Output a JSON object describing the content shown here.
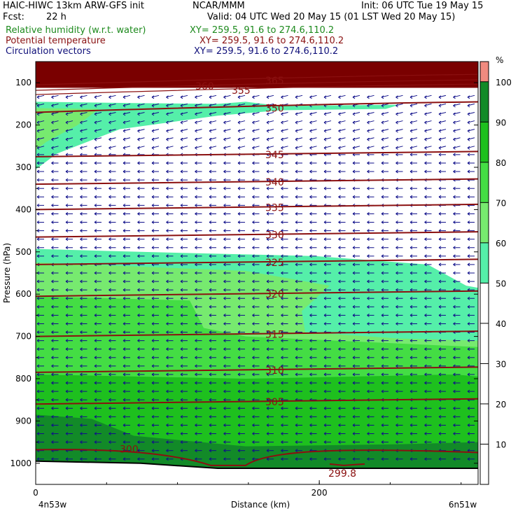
{
  "header": {
    "model": "HAIC-HIWC 13km ARW-GFS init",
    "institution": "NCAR/MMM",
    "init": "Init: 06 UTC Tue 19 May 15",
    "fcst_label": "Fcst:",
    "fcst_value": "22 h",
    "valid": "Valid: 04 UTC Wed 20 May 15 (01 LST Wed 20 May 15)",
    "fields": [
      {
        "name": "Relative humidity (w.r.t. water)",
        "xy": "XY= 259.5, 91.6 to 274.6,110.2",
        "color": "#1d8a1d"
      },
      {
        "name": "Potential temperature",
        "xy": "XY= 259.5, 91.6 to 274.6,110.2",
        "color": "#8a1212"
      },
      {
        "name": "Circulation vectors",
        "xy": "XY= 259.5, 91.6 to 274.6,110.2",
        "color": "#10107a"
      }
    ]
  },
  "chart_data": {
    "type": "contour-cross-section",
    "ylabel": "Pressure (hPa)",
    "xlabel": "Distance (km)",
    "y_ticks": [
      100,
      200,
      300,
      400,
      500,
      600,
      700,
      800,
      900,
      1000
    ],
    "y_range": [
      1050,
      50
    ],
    "x_ticks": [
      0,
      200
    ],
    "x_range": [
      0,
      312
    ],
    "x_end_labels": [
      "4n53w",
      "6n51w"
    ],
    "colorbar": {
      "unit": "%",
      "labels": [
        10,
        20,
        30,
        40,
        50,
        60,
        70,
        80,
        90,
        100
      ],
      "bands": [
        {
          "from": 50,
          "to": 60,
          "color": "#55efa9"
        },
        {
          "from": 60,
          "to": 70,
          "color": "#77ea6f"
        },
        {
          "from": 70,
          "to": 80,
          "color": "#44dd44"
        },
        {
          "from": 80,
          "to": 90,
          "color": "#1ec01e"
        },
        {
          "from": 90,
          "to": 100,
          "color": "#128a28"
        },
        {
          "from": 100,
          "to": 105,
          "color": "#f08a7f"
        }
      ]
    },
    "theta_contours": [
      {
        "label": "365",
        "p": 95
      },
      {
        "label": "360",
        "p": 108
      },
      {
        "label": "355",
        "p": 118
      },
      {
        "label": "350",
        "p": 160
      },
      {
        "label": "345",
        "p": 270
      },
      {
        "label": "340",
        "p": 335
      },
      {
        "label": "335",
        "p": 395
      },
      {
        "label": "330",
        "p": 460
      },
      {
        "label": "325",
        "p": 525
      },
      {
        "label": "320",
        "p": 600
      },
      {
        "label": "315",
        "p": 695
      },
      {
        "label": "310",
        "p": 780
      },
      {
        "label": "305",
        "p": 855
      },
      {
        "label": "300",
        "p": 968
      },
      {
        "label": "299.8",
        "p": 1005
      }
    ],
    "colors": {
      "theta": "#8b1010",
      "vectors": "#10108a",
      "top_fill": "#7a0000"
    }
  }
}
